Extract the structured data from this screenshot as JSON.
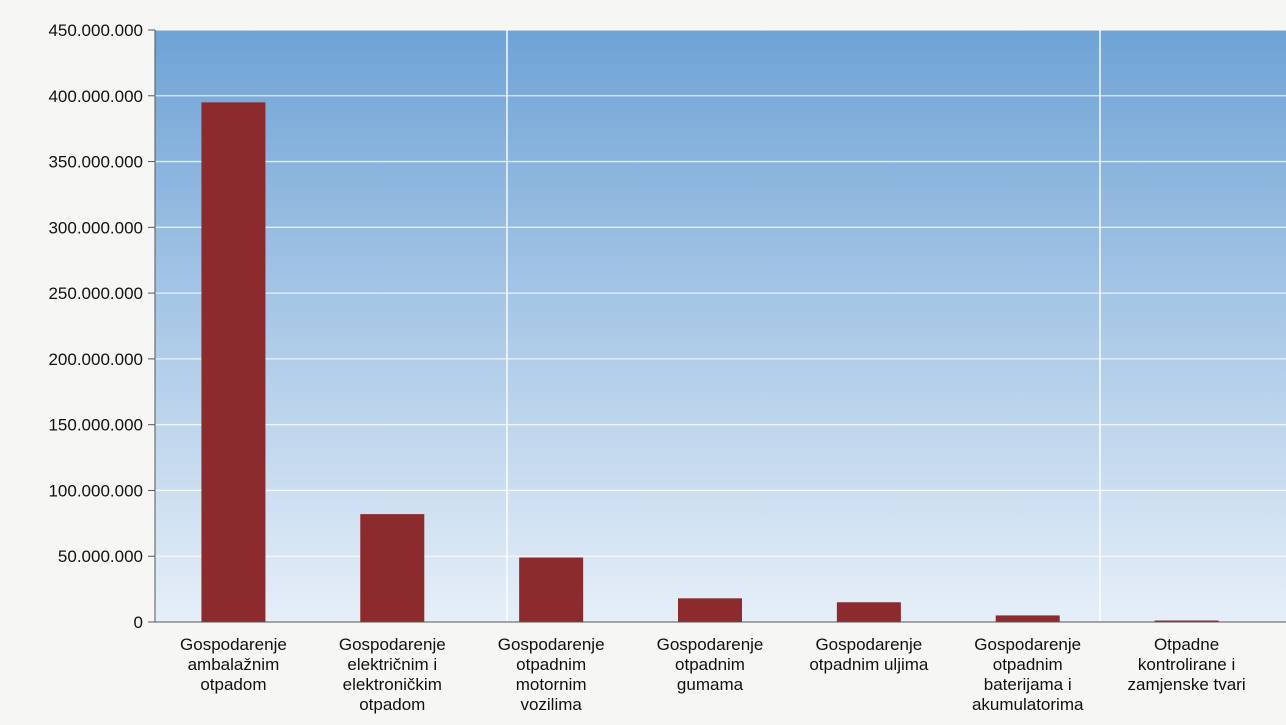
{
  "chart_data": {
    "type": "bar",
    "title": "",
    "xlabel": "",
    "ylabel": "",
    "categories": [
      [
        "Gospodarenje",
        "ambalažnim",
        "otpadom"
      ],
      [
        "Gospodarenje",
        "električnim i",
        "elektroničkim",
        "otpadom"
      ],
      [
        "Gospodarenje",
        "otpadnim",
        "motornim",
        "vozilima"
      ],
      [
        "Gospodarenje",
        "otpadnim",
        "gumama"
      ],
      [
        "Gospodarenje",
        "otpadnim uljima"
      ],
      [
        "Gospodarenje",
        "otpadnim",
        "baterijama i",
        "akumulatorima"
      ],
      [
        "Otpadne",
        "kontrolirane i",
        "zamjenske tvari"
      ]
    ],
    "values": [
      395000000,
      82000000,
      49000000,
      18000000,
      15000000,
      5000000,
      300000
    ],
    "ylim": [
      0,
      450000000
    ],
    "yticks": [
      0,
      50000000,
      100000000,
      150000000,
      200000000,
      250000000,
      300000000,
      350000000,
      400000000,
      450000000
    ],
    "ytick_labels": [
      "0",
      "50.000.000",
      "100.000.000",
      "150.000.000",
      "200.000.000",
      "250.000.000",
      "300.000.000",
      "350.000.000",
      "400.000.000",
      "450.000.000"
    ],
    "grid": true,
    "bar_color": "#8b2b2e",
    "plot_bg_top": "#6fa3d6",
    "plot_bg_bottom": "#e6eff8"
  }
}
